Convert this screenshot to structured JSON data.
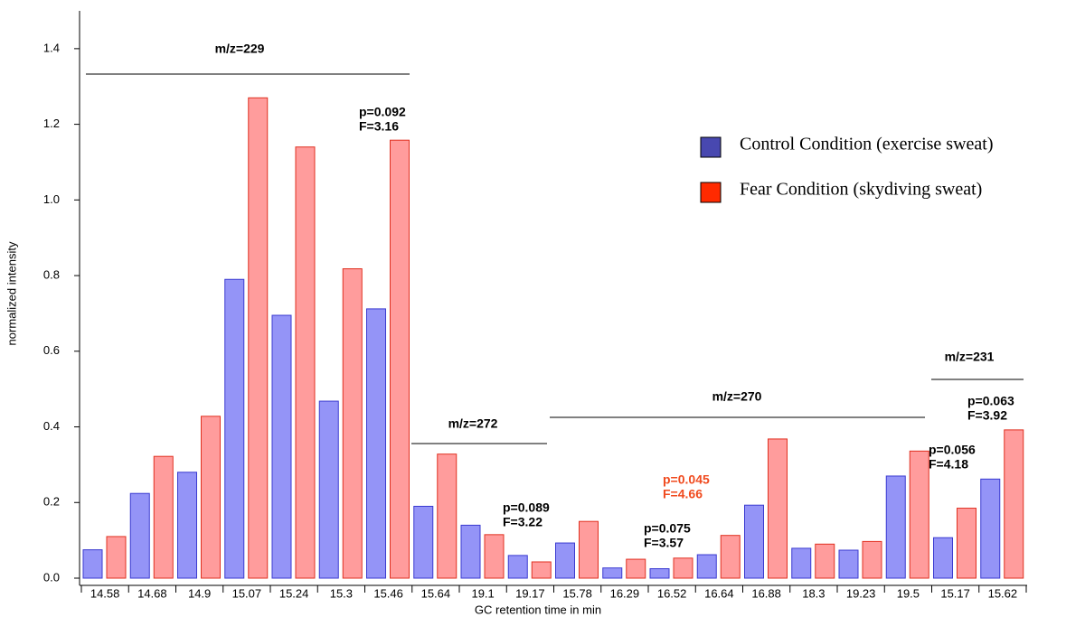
{
  "chart_data": {
    "type": "bar",
    "x_label": "GC retention time in min",
    "y_label": "normalized intensity",
    "categories": [
      "14.58",
      "14.68",
      "14.9",
      "15.07",
      "15.24",
      "15.3",
      "15.46",
      "15.64",
      "19.1",
      "19.17",
      "15.78",
      "16.29",
      "16.52",
      "16.64",
      "16.88",
      "18.3",
      "19.23",
      "19.5",
      "15.17",
      "15.62"
    ],
    "series": [
      {
        "name": "Control Condition (exercise sweat)",
        "color": "#9494f7",
        "edgecolor": "#3a3ad0",
        "legend_color": "#4848b0",
        "values": [
          0.075,
          0.224,
          0.28,
          0.79,
          0.695,
          0.468,
          0.712,
          0.19,
          0.14,
          0.06,
          0.093,
          0.027,
          0.025,
          0.062,
          0.193,
          0.079,
          0.074,
          0.27,
          0.107,
          0.262
        ]
      },
      {
        "name": "Fear Condition (skydiving sweat)",
        "color": "#ff9c9c",
        "edgecolor": "#e03020",
        "legend_color": "#ff2a00",
        "values": [
          0.11,
          0.322,
          0.428,
          1.27,
          1.14,
          0.818,
          1.158,
          0.328,
          0.115,
          0.043,
          0.15,
          0.05,
          0.053,
          0.113,
          0.368,
          0.09,
          0.097,
          0.336,
          0.185,
          0.392
        ]
      }
    ],
    "ylim": [
      0,
      1.5
    ],
    "yticks": [
      {
        "value": 0,
        "label": "0.0"
      },
      0.2,
      0.4,
      0.6,
      0.8,
      {
        "value": 1,
        "label": "1.0"
      },
      1.2,
      1.4
    ],
    "groups": [
      "m/z=229",
      "m/z=272",
      "m/z=270",
      "m/z=231"
    ],
    "annotations": [
      {
        "lines": [
          "p=0.092",
          "F=3.16"
        ],
        "color": "#000000"
      },
      {
        "lines": [
          "p=0.089",
          "F=3.22"
        ],
        "color": "#000000"
      },
      {
        "lines": [
          "p=0.075",
          "F=3.57"
        ],
        "color": "#000000"
      },
      {
        "lines": [
          "p=0.045",
          "F=4.66"
        ],
        "color": "#f04a1e"
      },
      {
        "lines": [
          "p=0.056",
          "F=4.18"
        ],
        "color": "#000000"
      },
      {
        "lines": [
          "p=0.063",
          "F=3.92"
        ],
        "color": "#000000"
      }
    ]
  }
}
